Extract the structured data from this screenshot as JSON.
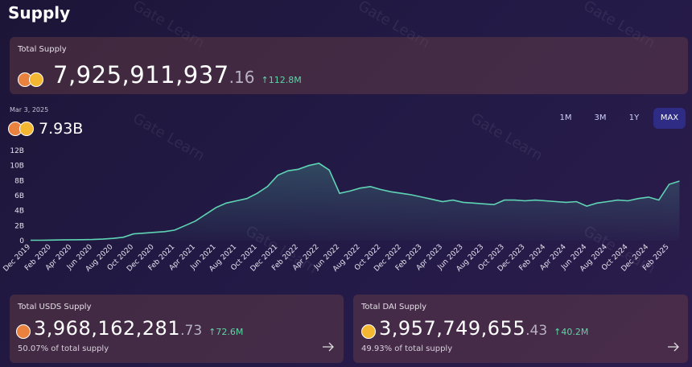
{
  "header": {
    "title": "Supply"
  },
  "watermark": "Gate Learn",
  "total_supply": {
    "label": "Total Supply",
    "amount": "7,925,911,937",
    "decimals": ".16",
    "change": "↑112.8M"
  },
  "chart_header": {
    "date": "Mar 3, 2025",
    "value": "7.93B"
  },
  "range_buttons": [
    "1M",
    "3M",
    "1Y",
    "MAX"
  ],
  "chart_data": {
    "type": "line",
    "categories": [
      "Dec 2019",
      null,
      "Feb 2020",
      null,
      "Apr 2020",
      null,
      "Jun 2020",
      null,
      "Aug 2020",
      null,
      "Oct 2020",
      null,
      "Dec 2020",
      null,
      "Feb 2021",
      null,
      "Apr 2021",
      null,
      "Jun 2021",
      null,
      "Aug 2021",
      null,
      "Oct 2021",
      null,
      "Dec 2021",
      null,
      "Feb 2022",
      null,
      "Apr 2022",
      null,
      "Jun 2022",
      null,
      "Aug 2022",
      null,
      "Oct 2022",
      null,
      "Dec 2022",
      null,
      "Feb 2023",
      null,
      "Apr 2023",
      null,
      "Jun 2023",
      null,
      "Aug 2023",
      null,
      "Oct 2023",
      null,
      "Dec 2023",
      null,
      "Feb 2024",
      null,
      "Apr 2024",
      null,
      "Jun 2024",
      null,
      "Aug 2024",
      null,
      "Oct 2024",
      null,
      "Dec 2024",
      null,
      "Feb 2025",
      null
    ],
    "series": [
      {
        "color": "#5fd4b4",
        "values": [
          0.05,
          0.05,
          0.08,
          0.1,
          0.12,
          0.13,
          0.15,
          0.2,
          0.3,
          0.45,
          0.9,
          1.0,
          1.1,
          1.2,
          1.4,
          2.0,
          2.6,
          3.5,
          4.4,
          5.0,
          5.3,
          5.6,
          6.3,
          7.2,
          8.7,
          9.3,
          9.5,
          10.0,
          10.3,
          9.4,
          6.3,
          6.6,
          7.0,
          7.2,
          6.8,
          6.5,
          6.3,
          6.1,
          5.8,
          5.5,
          5.2,
          5.4,
          5.1,
          5.0,
          4.9,
          4.8,
          5.4,
          5.4,
          5.3,
          5.4,
          5.3,
          5.2,
          5.1,
          5.2,
          4.6,
          5.0,
          5.2,
          5.4,
          5.3,
          5.6,
          5.8,
          5.4,
          7.5,
          7.93
        ]
      }
    ],
    "ylim": [
      0,
      12
    ],
    "yticks": [
      0,
      {
        "value": 2,
        "label": "2B"
      },
      {
        "value": 4,
        "label": "4B"
      },
      {
        "value": 6,
        "label": "6B"
      },
      {
        "value": 8,
        "label": "8B"
      },
      {
        "value": 10,
        "label": "10B"
      },
      {
        "value": 12,
        "label": "12B"
      }
    ],
    "grid": false
  },
  "cards": [
    {
      "label": "Total USDS Supply",
      "amount": "3,968,162,281",
      "decimals": ".73",
      "change": "↑72.6M",
      "share": "50.07% of total supply"
    },
    {
      "label": "Total DAI Supply",
      "amount": "3,957,749,655",
      "decimals": ".43",
      "change": "↑40.2M",
      "share": "49.93% of total supply"
    }
  ]
}
